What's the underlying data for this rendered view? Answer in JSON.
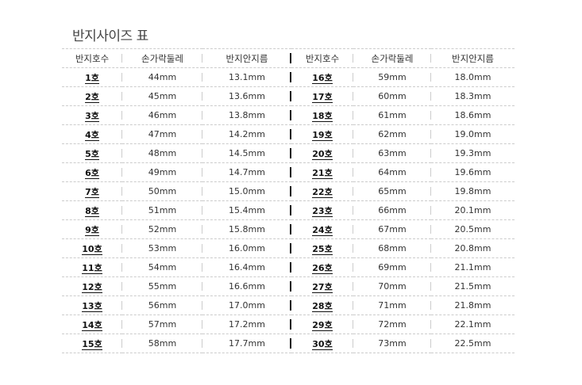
{
  "title": "반지사이즈 표",
  "headers": [
    "반지호수",
    "손가락둘레",
    "반지안지름",
    "반지호수",
    "손가락둘레",
    "반지안지름"
  ],
  "rows": [
    [
      "1호",
      "44mm",
      "13.1mm",
      "16호",
      "59mm",
      "18.0mm"
    ],
    [
      "2호",
      "45mm",
      "13.6mm",
      "17호",
      "60mm",
      "18.3mm"
    ],
    [
      "3호",
      "46mm",
      "13.8mm",
      "18호",
      "61mm",
      "18.6mm"
    ],
    [
      "4호",
      "47mm",
      "14.2mm",
      "19호",
      "62mm",
      "19.0mm"
    ],
    [
      "5호",
      "48mm",
      "14.5mm",
      "20호",
      "63mm",
      "19.3mm"
    ],
    [
      "6호",
      "49mm",
      "14.7mm",
      "21호",
      "64mm",
      "19.6mm"
    ],
    [
      "7호",
      "50mm",
      "15.0mm",
      "22호",
      "65mm",
      "19.8mm"
    ],
    [
      "8호",
      "51mm",
      "15.4mm",
      "23호",
      "66mm",
      "20.1mm"
    ],
    [
      "9호",
      "52mm",
      "15.8mm",
      "24호",
      "67mm",
      "20.5mm"
    ],
    [
      "10호",
      "53mm",
      "16.0mm",
      "25호",
      "68mm",
      "20.8mm"
    ],
    [
      "11호",
      "54mm",
      "16.4mm",
      "26호",
      "69mm",
      "21.1mm"
    ],
    [
      "12호",
      "55mm",
      "16.6mm",
      "27호",
      "70mm",
      "21.5mm"
    ],
    [
      "13호",
      "56mm",
      "17.0mm",
      "28호",
      "71mm",
      "21.8mm"
    ],
    [
      "14호",
      "57mm",
      "17.2mm",
      "29호",
      "72mm",
      "22.1mm"
    ],
    [
      "15호",
      "58mm",
      "17.7mm",
      "30호",
      "73mm",
      "22.5mm"
    ]
  ]
}
